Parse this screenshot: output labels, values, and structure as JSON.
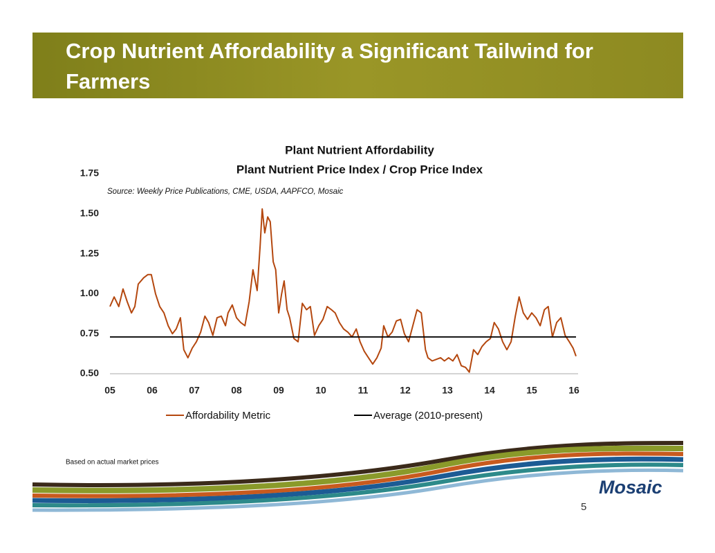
{
  "header": {
    "title": "Crop Nutrient Affordability a Significant Tailwind for Farmers"
  },
  "chart_data": {
    "type": "line",
    "title": "Plant Nutrient Affordability",
    "subtitle": "Plant Nutrient Price Index / Crop Price Index",
    "source": "Source: Weekly Price Publications, CME, USDA, AAPFCO, Mosaic",
    "xlim": [
      2005,
      2016.1
    ],
    "xticks": [
      {
        "value": 2005,
        "label": "05"
      },
      {
        "value": 2006,
        "label": "06"
      },
      {
        "value": 2007,
        "label": "07"
      },
      {
        "value": 2008,
        "label": "08"
      },
      {
        "value": 2009,
        "label": "09"
      },
      {
        "value": 2010,
        "label": "10"
      },
      {
        "value": 2011,
        "label": "11"
      },
      {
        "value": 2012,
        "label": "12"
      },
      {
        "value": 2013,
        "label": "13"
      },
      {
        "value": 2014,
        "label": "14"
      },
      {
        "value": 2015,
        "label": "15"
      },
      {
        "value": 2016,
        "label": "16"
      }
    ],
    "ylim": [
      0.5,
      1.75
    ],
    "yticks": [
      {
        "value": 0.5,
        "label": "0.50"
      },
      0.75,
      {
        "value": 1.0,
        "label": "1.00"
      },
      1.25,
      {
        "value": 1.5,
        "label": "1.50"
      },
      1.75
    ],
    "legend": "bottom",
    "series": [
      {
        "name": "Affordability Metric",
        "color": "#b4470e",
        "x": [
          2005.0,
          2005.1,
          2005.21,
          2005.31,
          2005.41,
          2005.51,
          2005.59,
          2005.67,
          2005.8,
          2005.9,
          2005.98,
          2006.08,
          2006.18,
          2006.28,
          2006.38,
          2006.48,
          2006.57,
          2006.67,
          2006.75,
          2006.85,
          2006.95,
          2007.05,
          2007.15,
          2007.25,
          2007.34,
          2007.44,
          2007.54,
          2007.64,
          2007.74,
          2007.8,
          2007.9,
          2008.0,
          2008.1,
          2008.2,
          2008.3,
          2008.39,
          2008.49,
          2008.56,
          2008.61,
          2008.67,
          2008.74,
          2008.8,
          2008.87,
          2008.93,
          2009.0,
          2009.07,
          2009.13,
          2009.2,
          2009.26,
          2009.36,
          2009.46,
          2009.56,
          2009.66,
          2009.75,
          2009.85,
          2009.95,
          2010.05,
          2010.15,
          2010.25,
          2010.34,
          2010.44,
          2010.54,
          2010.64,
          2010.74,
          2010.84,
          2010.93,
          2011.03,
          2011.13,
          2011.23,
          2011.33,
          2011.43,
          2011.49,
          2011.59,
          2011.69,
          2011.79,
          2011.89,
          2011.98,
          2012.08,
          2012.18,
          2012.28,
          2012.38,
          2012.48,
          2012.54,
          2012.64,
          2012.74,
          2012.84,
          2012.93,
          2013.03,
          2013.13,
          2013.23,
          2013.33,
          2013.43,
          2013.52,
          2013.62,
          2013.72,
          2013.82,
          2013.92,
          2014.02,
          2014.11,
          2014.21,
          2014.31,
          2014.41,
          2014.51,
          2014.61,
          2014.7,
          2014.8,
          2014.9,
          2015.0,
          2015.1,
          2015.2,
          2015.3,
          2015.39,
          2015.49,
          2015.59,
          2015.69,
          2015.79,
          2015.89,
          2015.98,
          2016.05
        ],
        "values": [
          0.92,
          0.98,
          0.92,
          1.03,
          0.95,
          0.88,
          0.92,
          1.06,
          1.1,
          1.12,
          1.12,
          1.0,
          0.92,
          0.88,
          0.8,
          0.75,
          0.78,
          0.85,
          0.65,
          0.6,
          0.66,
          0.7,
          0.76,
          0.86,
          0.82,
          0.74,
          0.85,
          0.86,
          0.8,
          0.88,
          0.93,
          0.85,
          0.82,
          0.8,
          0.95,
          1.15,
          1.02,
          1.3,
          1.53,
          1.38,
          1.48,
          1.45,
          1.2,
          1.15,
          0.88,
          1.0,
          1.08,
          0.9,
          0.85,
          0.72,
          0.7,
          0.94,
          0.9,
          0.92,
          0.74,
          0.8,
          0.84,
          0.92,
          0.9,
          0.88,
          0.82,
          0.78,
          0.76,
          0.73,
          0.78,
          0.7,
          0.64,
          0.6,
          0.56,
          0.6,
          0.66,
          0.8,
          0.73,
          0.76,
          0.83,
          0.84,
          0.75,
          0.7,
          0.8,
          0.9,
          0.88,
          0.65,
          0.6,
          0.58,
          0.59,
          0.6,
          0.58,
          0.6,
          0.58,
          0.62,
          0.55,
          0.54,
          0.51,
          0.65,
          0.62,
          0.67,
          0.7,
          0.72,
          0.82,
          0.78,
          0.7,
          0.65,
          0.7,
          0.86,
          0.98,
          0.88,
          0.84,
          0.88,
          0.85,
          0.8,
          0.9,
          0.92,
          0.73,
          0.82,
          0.85,
          0.74,
          0.7,
          0.66,
          0.61
        ]
      },
      {
        "name": "Average (2010-present)",
        "color": "#000000",
        "x": [
          2005.0,
          2016.05
        ],
        "values": [
          0.73,
          0.73
        ]
      }
    ]
  },
  "footnote": "Based on actual market prices",
  "logo": "Mosaic",
  "page_number": "5"
}
